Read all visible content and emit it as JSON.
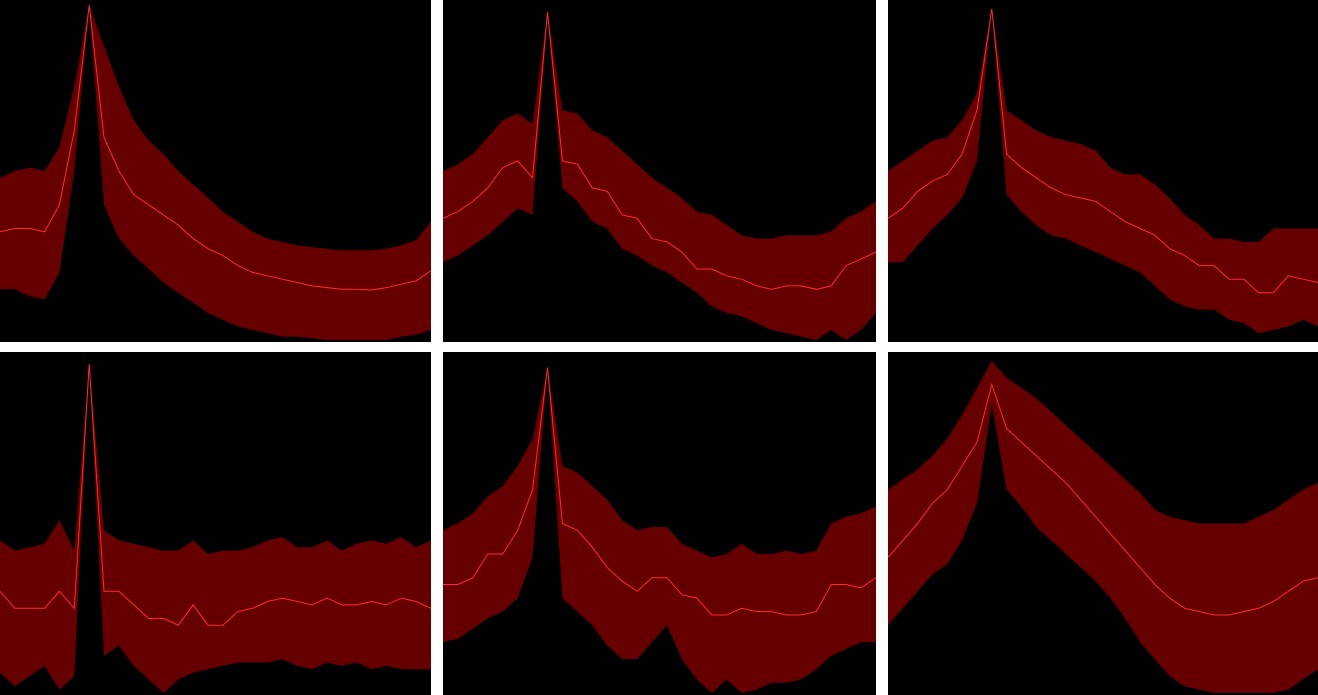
{
  "figure": {
    "colors": {
      "background": "#000000",
      "band": "#660000",
      "line": "#ff2a2a",
      "separator": "#ffffff"
    }
  },
  "chart_data": [
    {
      "type": "area",
      "title": "",
      "xlabel": "",
      "ylabel": "",
      "x": [
        0,
        1,
        2,
        3,
        4,
        5,
        6,
        7,
        8,
        9,
        10,
        11,
        12,
        13,
        14,
        15,
        16,
        17,
        18,
        19,
        20,
        21,
        22,
        23,
        24,
        25,
        26,
        27,
        28,
        29
      ],
      "ylim": [
        0,
        1
      ],
      "grid": false,
      "series": [
        {
          "name": "mean",
          "values": [
            0.32,
            0.33,
            0.33,
            0.32,
            0.4,
            0.62,
            0.99,
            0.6,
            0.5,
            0.43,
            0.4,
            0.37,
            0.34,
            0.3,
            0.27,
            0.25,
            0.22,
            0.2,
            0.19,
            0.18,
            0.17,
            0.16,
            0.155,
            0.15,
            0.15,
            0.148,
            0.155,
            0.165,
            0.175,
            0.205
          ]
        },
        {
          "name": "upper",
          "values": [
            0.48,
            0.5,
            0.51,
            0.5,
            0.57,
            0.75,
            0.99,
            0.87,
            0.75,
            0.65,
            0.59,
            0.55,
            0.5,
            0.46,
            0.42,
            0.38,
            0.35,
            0.32,
            0.3,
            0.29,
            0.28,
            0.275,
            0.27,
            0.265,
            0.265,
            0.265,
            0.27,
            0.28,
            0.295,
            0.35
          ]
        },
        {
          "name": "lower",
          "values": [
            0.15,
            0.15,
            0.13,
            0.12,
            0.2,
            0.5,
            0.99,
            0.4,
            0.3,
            0.25,
            0.21,
            0.17,
            0.14,
            0.11,
            0.08,
            0.06,
            0.04,
            0.03,
            0.02,
            0.01,
            0.01,
            0.005,
            0.0,
            0.0,
            0.0,
            0.0,
            0.0,
            0.01,
            0.015,
            0.03
          ]
        }
      ]
    },
    {
      "type": "area",
      "title": "",
      "xlabel": "",
      "ylabel": "",
      "x": [
        0,
        1,
        2,
        3,
        4,
        5,
        6,
        7,
        8,
        9,
        10,
        11,
        12,
        13,
        14,
        15,
        16,
        17,
        18,
        19,
        20,
        21,
        22,
        23,
        24,
        25,
        26,
        27,
        28,
        29
      ],
      "ylim": [
        0,
        1
      ],
      "grid": false,
      "series": [
        {
          "name": "mean",
          "values": [
            0.36,
            0.38,
            0.41,
            0.45,
            0.51,
            0.53,
            0.48,
            0.97,
            0.53,
            0.52,
            0.45,
            0.44,
            0.37,
            0.36,
            0.3,
            0.29,
            0.26,
            0.21,
            0.21,
            0.19,
            0.18,
            0.16,
            0.15,
            0.16,
            0.16,
            0.15,
            0.16,
            0.22,
            0.24,
            0.26
          ]
        },
        {
          "name": "upper",
          "values": [
            0.5,
            0.52,
            0.55,
            0.6,
            0.65,
            0.67,
            0.64,
            0.97,
            0.68,
            0.67,
            0.62,
            0.6,
            0.56,
            0.52,
            0.48,
            0.45,
            0.42,
            0.38,
            0.37,
            0.34,
            0.31,
            0.3,
            0.3,
            0.31,
            0.31,
            0.31,
            0.32,
            0.36,
            0.38,
            0.41
          ]
        },
        {
          "name": "lower",
          "values": [
            0.23,
            0.25,
            0.28,
            0.31,
            0.35,
            0.39,
            0.37,
            0.96,
            0.45,
            0.41,
            0.35,
            0.33,
            0.27,
            0.25,
            0.22,
            0.2,
            0.17,
            0.14,
            0.1,
            0.08,
            0.07,
            0.05,
            0.03,
            0.02,
            0.01,
            0.0,
            0.03,
            0.0,
            0.03,
            0.08
          ]
        }
      ]
    },
    {
      "type": "area",
      "title": "",
      "xlabel": "",
      "ylabel": "",
      "x": [
        0,
        1,
        2,
        3,
        4,
        5,
        6,
        7,
        8,
        9,
        10,
        11,
        12,
        13,
        14,
        15,
        16,
        17,
        18,
        19,
        20,
        21,
        22,
        23,
        24,
        25,
        26,
        27,
        28,
        29
      ],
      "ylim": [
        0,
        1
      ],
      "grid": false,
      "series": [
        {
          "name": "mean",
          "values": [
            0.36,
            0.39,
            0.44,
            0.47,
            0.49,
            0.55,
            0.68,
            0.98,
            0.55,
            0.51,
            0.48,
            0.45,
            0.43,
            0.42,
            0.41,
            0.38,
            0.35,
            0.33,
            0.31,
            0.27,
            0.25,
            0.22,
            0.22,
            0.18,
            0.18,
            0.14,
            0.14,
            0.19,
            0.18,
            0.17
          ]
        },
        {
          "name": "upper",
          "values": [
            0.5,
            0.53,
            0.56,
            0.59,
            0.6,
            0.65,
            0.73,
            0.98,
            0.68,
            0.65,
            0.62,
            0.6,
            0.59,
            0.58,
            0.56,
            0.51,
            0.49,
            0.49,
            0.46,
            0.42,
            0.37,
            0.34,
            0.3,
            0.3,
            0.29,
            0.29,
            0.33,
            0.33,
            0.33,
            0.33
          ]
        },
        {
          "name": "lower",
          "values": [
            0.23,
            0.23,
            0.28,
            0.33,
            0.37,
            0.42,
            0.53,
            0.98,
            0.43,
            0.38,
            0.34,
            0.31,
            0.3,
            0.28,
            0.26,
            0.24,
            0.22,
            0.2,
            0.16,
            0.12,
            0.1,
            0.09,
            0.09,
            0.06,
            0.05,
            0.02,
            0.03,
            0.04,
            0.06,
            0.04
          ]
        }
      ]
    },
    {
      "type": "area",
      "title": "",
      "xlabel": "",
      "ylabel": "",
      "x": [
        0,
        1,
        2,
        3,
        4,
        5,
        6,
        7,
        8,
        9,
        10,
        11,
        12,
        13,
        14,
        15,
        16,
        17,
        18,
        19,
        20,
        21,
        22,
        23,
        24,
        25,
        26,
        27,
        28,
        29
      ],
      "ylim": [
        0,
        1
      ],
      "grid": false,
      "series": [
        {
          "name": "mean",
          "values": [
            0.3,
            0.25,
            0.25,
            0.25,
            0.3,
            0.25,
            0.97,
            0.3,
            0.3,
            0.26,
            0.22,
            0.22,
            0.2,
            0.26,
            0.2,
            0.2,
            0.24,
            0.25,
            0.27,
            0.28,
            0.27,
            0.26,
            0.28,
            0.26,
            0.26,
            0.27,
            0.26,
            0.28,
            0.27,
            0.25
          ]
        },
        {
          "name": "upper",
          "values": [
            0.45,
            0.42,
            0.43,
            0.44,
            0.51,
            0.42,
            0.97,
            0.48,
            0.45,
            0.44,
            0.43,
            0.42,
            0.42,
            0.45,
            0.41,
            0.42,
            0.42,
            0.43,
            0.45,
            0.46,
            0.43,
            0.43,
            0.45,
            0.42,
            0.44,
            0.45,
            0.44,
            0.46,
            0.43,
            0.45
          ]
        },
        {
          "name": "lower",
          "values": [
            0.06,
            0.02,
            0.05,
            0.08,
            0.01,
            0.05,
            0.97,
            0.11,
            0.14,
            0.08,
            0.04,
            0.0,
            0.04,
            0.06,
            0.07,
            0.08,
            0.09,
            0.09,
            0.09,
            0.1,
            0.08,
            0.07,
            0.09,
            0.08,
            0.09,
            0.07,
            0.08,
            0.07,
            0.07,
            0.07
          ]
        }
      ]
    },
    {
      "type": "area",
      "title": "",
      "xlabel": "",
      "ylabel": "",
      "x": [
        0,
        1,
        2,
        3,
        4,
        5,
        6,
        7,
        8,
        9,
        10,
        11,
        12,
        13,
        14,
        15,
        16,
        17,
        18,
        19,
        20,
        21,
        22,
        23,
        24,
        25,
        26,
        27,
        28,
        29
      ],
      "ylim": [
        0,
        1
      ],
      "grid": false,
      "series": [
        {
          "name": "mean",
          "values": [
            0.32,
            0.32,
            0.34,
            0.41,
            0.41,
            0.48,
            0.6,
            0.96,
            0.5,
            0.48,
            0.43,
            0.37,
            0.33,
            0.3,
            0.34,
            0.34,
            0.29,
            0.28,
            0.23,
            0.23,
            0.25,
            0.24,
            0.24,
            0.23,
            0.23,
            0.24,
            0.32,
            0.32,
            0.31,
            0.34
          ]
        },
        {
          "name": "upper",
          "values": [
            0.48,
            0.5,
            0.53,
            0.58,
            0.61,
            0.67,
            0.75,
            0.96,
            0.67,
            0.65,
            0.61,
            0.57,
            0.51,
            0.48,
            0.49,
            0.49,
            0.44,
            0.42,
            0.4,
            0.41,
            0.44,
            0.41,
            0.41,
            0.42,
            0.41,
            0.42,
            0.5,
            0.52,
            0.53,
            0.55
          ]
        },
        {
          "name": "lower",
          "values": [
            0.15,
            0.16,
            0.19,
            0.22,
            0.24,
            0.28,
            0.4,
            0.96,
            0.28,
            0.24,
            0.2,
            0.14,
            0.1,
            0.1,
            0.15,
            0.2,
            0.1,
            0.04,
            0.0,
            0.04,
            0.0,
            0.01,
            0.03,
            0.03,
            0.04,
            0.07,
            0.11,
            0.13,
            0.15,
            0.15
          ]
        }
      ]
    },
    {
      "type": "area",
      "title": "",
      "xlabel": "",
      "ylabel": "",
      "x": [
        0,
        1,
        2,
        3,
        4,
        5,
        6,
        7,
        8,
        9,
        10,
        11,
        12,
        13,
        14,
        15,
        16,
        17,
        18,
        19,
        20,
        21,
        22,
        23,
        24,
        25,
        26,
        27,
        28,
        29
      ],
      "ylim": [
        0,
        1
      ],
      "grid": false,
      "series": [
        {
          "name": "mean",
          "values": [
            0.4,
            0.45,
            0.5,
            0.56,
            0.6,
            0.67,
            0.74,
            0.91,
            0.78,
            0.74,
            0.7,
            0.66,
            0.62,
            0.57,
            0.52,
            0.47,
            0.42,
            0.37,
            0.32,
            0.28,
            0.25,
            0.24,
            0.23,
            0.23,
            0.24,
            0.25,
            0.27,
            0.3,
            0.33,
            0.34
          ]
        },
        {
          "name": "upper",
          "values": [
            0.6,
            0.63,
            0.66,
            0.7,
            0.75,
            0.82,
            0.9,
            0.98,
            0.93,
            0.9,
            0.87,
            0.83,
            0.79,
            0.75,
            0.71,
            0.67,
            0.63,
            0.59,
            0.54,
            0.52,
            0.51,
            0.5,
            0.5,
            0.5,
            0.5,
            0.52,
            0.54,
            0.57,
            0.6,
            0.62
          ]
        },
        {
          "name": "lower",
          "values": [
            0.2,
            0.25,
            0.3,
            0.35,
            0.38,
            0.45,
            0.56,
            0.85,
            0.6,
            0.55,
            0.49,
            0.45,
            0.41,
            0.37,
            0.33,
            0.28,
            0.22,
            0.15,
            0.1,
            0.05,
            0.02,
            0.01,
            0.0,
            0.0,
            0.0,
            0.0,
            0.0,
            0.01,
            0.04,
            0.07
          ]
        }
      ]
    }
  ]
}
